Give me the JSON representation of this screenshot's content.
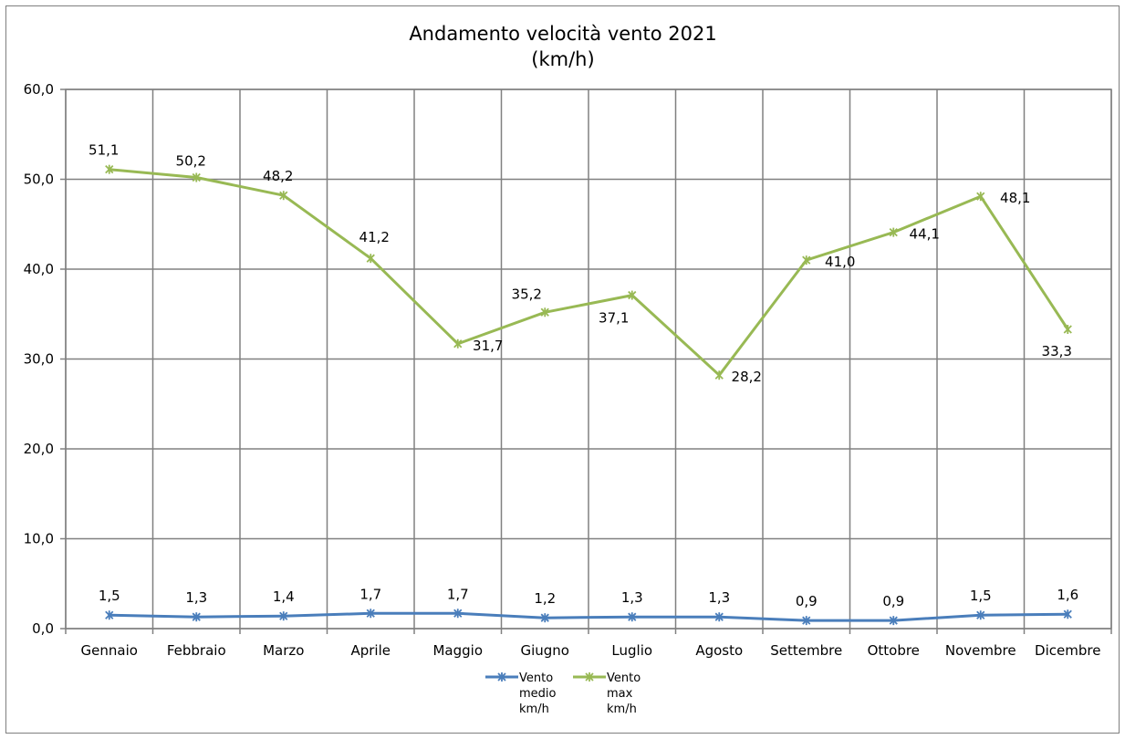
{
  "chart_data": {
    "type": "line",
    "title": "Andamento velocità vento 2021",
    "subtitle": "(km/h)",
    "categories": [
      "Gennaio",
      "Febbraio",
      "Marzo",
      "Aprile",
      "Maggio",
      "Giugno",
      "Luglio",
      "Agosto",
      "Settembre",
      "Ottobre",
      "Novembre",
      "Dicembre"
    ],
    "series": [
      {
        "name": [
          "Vento",
          "medio",
          "km/h"
        ],
        "color": "#4a7ebb",
        "values": [
          1.5,
          1.3,
          1.4,
          1.7,
          1.7,
          1.2,
          1.3,
          1.3,
          0.9,
          0.9,
          1.5,
          1.6
        ],
        "labels": [
          "1,5",
          "1,3",
          "1,4",
          "1,7",
          "1,7",
          "1,2",
          "1,3",
          "1,3",
          "0,9",
          "0,9",
          "1,5",
          "1,6"
        ]
      },
      {
        "name": [
          "Vento",
          "max",
          "km/h"
        ],
        "color": "#98b954",
        "values": [
          51.1,
          50.2,
          48.2,
          41.2,
          31.7,
          35.2,
          37.1,
          28.2,
          41.0,
          44.1,
          48.1,
          33.3
        ],
        "labels": [
          "51,1",
          "50,2",
          "48,2",
          "41,2",
          "31,7",
          "35,2",
          "37,1",
          "28,2",
          "41,0",
          "44,1",
          "48,1",
          "33,3"
        ]
      }
    ],
    "ylim": [
      0,
      60
    ],
    "yticks": [
      0,
      10,
      20,
      30,
      40,
      50,
      60
    ],
    "ytick_labels": [
      "0,0",
      "10,0",
      "20,0",
      "30,0",
      "40,0",
      "50,0",
      "60,0"
    ],
    "grid": true,
    "legend": "bottom"
  }
}
